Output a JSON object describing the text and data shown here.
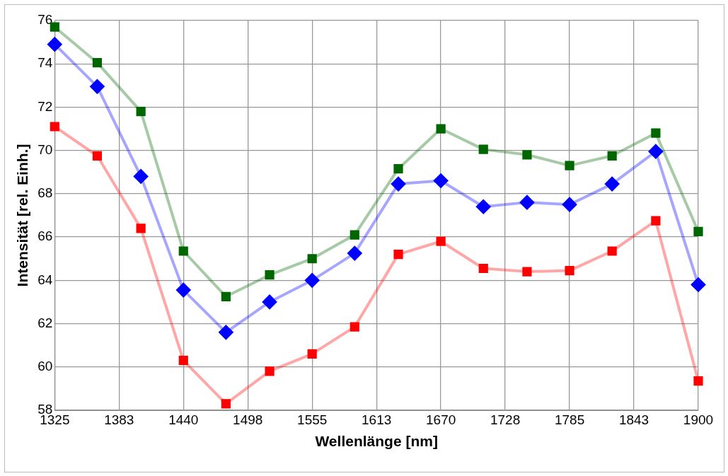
{
  "chart_data": {
    "type": "line",
    "xlabel": "Wellenlänge [nm]",
    "ylabel": "Intensität [rel. Einh.]",
    "x": [
      1325,
      1363,
      1402,
      1440,
      1478,
      1517,
      1555,
      1593,
      1632,
      1670,
      1708,
      1747,
      1785,
      1823,
      1862,
      1900
    ],
    "series": [
      {
        "color": "#006600",
        "marker": "square",
        "values": [
          75.7,
          74.05,
          71.8,
          65.35,
          63.25,
          64.25,
          65.0,
          66.1,
          69.15,
          71.0,
          70.05,
          69.8,
          69.3,
          69.75,
          70.8,
          66.25
        ]
      },
      {
        "color": "#0000ff",
        "marker": "diamond",
        "values": [
          74.9,
          72.95,
          68.8,
          63.55,
          61.6,
          63.0,
          64.0,
          65.25,
          68.45,
          68.6,
          67.4,
          67.6,
          67.5,
          68.45,
          69.95,
          63.8
        ]
      },
      {
        "color": "#ff0000",
        "marker": "square",
        "values": [
          71.1,
          69.75,
          66.4,
          60.3,
          58.3,
          59.8,
          60.6,
          61.85,
          65.2,
          65.8,
          64.55,
          64.4,
          64.45,
          65.35,
          66.75,
          59.35
        ]
      }
    ],
    "xlim": [
      1325,
      1900
    ],
    "xticks": [
      1325,
      {
        "value": 1382.5,
        "label": "1383"
      },
      1440,
      {
        "value": 1497.5,
        "label": "1498"
      },
      1555,
      {
        "value": 1612.5,
        "label": "1613"
      },
      1670,
      {
        "value": 1727.5,
        "label": "1728"
      },
      1785,
      {
        "value": 1842.5,
        "label": "1843"
      },
      1900
    ],
    "ylim": [
      58,
      76
    ],
    "yticks": [
      58,
      60,
      62,
      64,
      66,
      68,
      70,
      72,
      74,
      76
    ],
    "grid": true,
    "legend": false
  }
}
